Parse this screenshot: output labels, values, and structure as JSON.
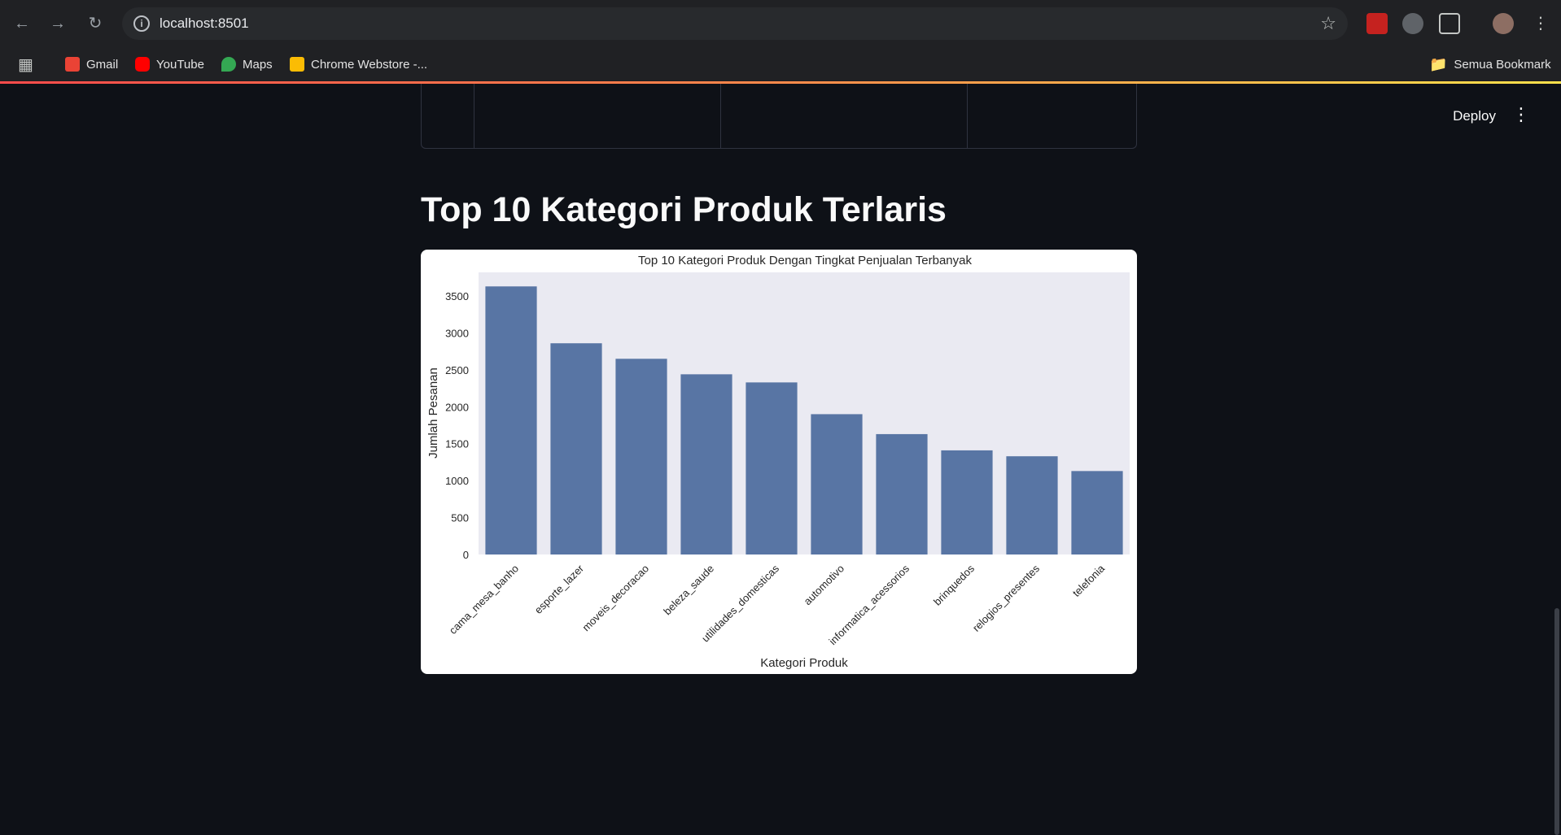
{
  "browser": {
    "url": "localhost:8501",
    "bookmarks": [
      {
        "label": "Gmail",
        "icon": "gmail-icon"
      },
      {
        "label": "YouTube",
        "icon": "youtube-icon"
      },
      {
        "label": "Maps",
        "icon": "maps-icon"
      },
      {
        "label": "Chrome Webstore -...",
        "icon": "webstore-icon"
      }
    ],
    "all_bookmarks_label": "Semua Bookmark"
  },
  "app": {
    "deploy_label": "Deploy",
    "section_title": "Top 10 Kategori Produk Terlaris"
  },
  "chart_data": {
    "type": "bar",
    "title": "Top 10 Kategori Produk Dengan Tingkat Penjualan Terbanyak",
    "xlabel": "Kategori Produk",
    "ylabel": "Jumlah Pesanan",
    "categories": [
      "cama_mesa_banho",
      "esporte_lazer",
      "moveis_decoracao",
      "beleza_saude",
      "utilidades_domesticas",
      "automotivo",
      "informatica_acessorios",
      "brinquedos",
      "relogios_presentes",
      "telefonia"
    ],
    "values": [
      3630,
      2860,
      2650,
      2440,
      2330,
      1900,
      1630,
      1410,
      1330,
      1130
    ],
    "ylim": [
      0,
      3820
    ],
    "yticks": [
      0,
      500,
      1000,
      1500,
      2000,
      2500,
      3000,
      3500
    ],
    "bar_color": "#5875a4",
    "plot_bg": "#eaeaf2"
  }
}
